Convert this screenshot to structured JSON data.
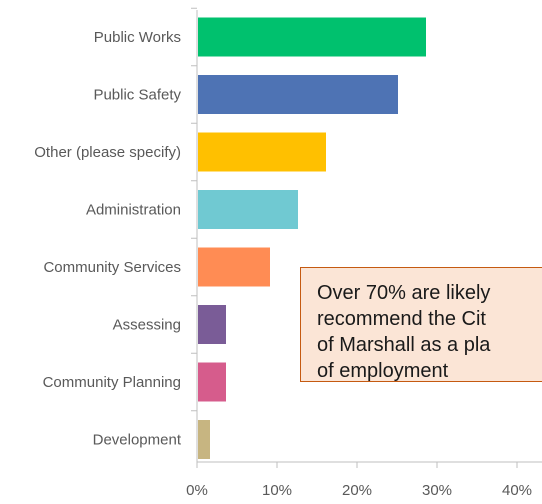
{
  "chart_data": {
    "type": "bar",
    "orientation": "horizontal",
    "categories": [
      "Public Works",
      "Public Safety",
      "Other (please specify)",
      "Administration",
      "Community Services",
      "Assessing",
      "Community Planning",
      "Development"
    ],
    "values": [
      28.5,
      25,
      16,
      12.5,
      9,
      3.5,
      3.5,
      1.5
    ],
    "colors": [
      "#00c16e",
      "#4e73b4",
      "#ffc000",
      "#70c9d2",
      "#ff8c54",
      "#7a5c97",
      "#d65c8c",
      "#c7b581"
    ],
    "x_ticks": [
      "0%",
      "10%",
      "20%",
      "30%",
      "40%"
    ],
    "xlim": [
      0,
      40
    ],
    "grid": false,
    "legend": "none"
  },
  "callout": {
    "text": "Over 70% are likely\nrecommend the Cit\nof Marshall as a pla\nof employment"
  }
}
